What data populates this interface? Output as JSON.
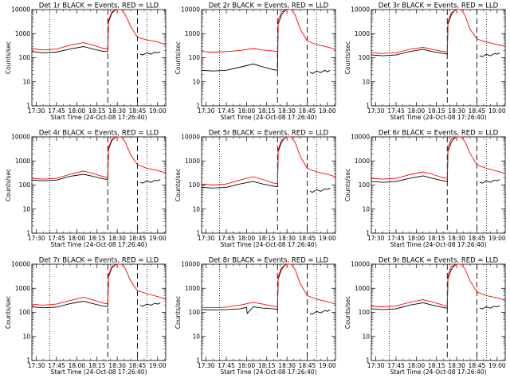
{
  "figure": {
    "xlabel": "Start Time (24-Oct-08 17:26:40)",
    "ylabel": "Counts/sec",
    "x_ticks": [
      "17:30",
      "17:45",
      "18:00",
      "18:15",
      "18:30",
      "18:45",
      "19:00"
    ],
    "y_ticks": [
      "1",
      "10",
      "100",
      "1000",
      "10000"
    ],
    "colors": {
      "events": "#000000",
      "lld": "#ff0000"
    }
  },
  "chart_data": [
    {
      "type": "line",
      "title": "Det 1r BLACK = Events, RED = LLD",
      "xlim": [
        "17:26:40",
        "19:06"
      ],
      "ylim": [
        1,
        10000
      ],
      "y_scale": "log",
      "vertical_dotted": [
        "17:40",
        "18:52"
      ],
      "vertical_dashed": [
        "18:23",
        "18:45"
      ],
      "series": [
        {
          "color": "#000000",
          "x": [
            "17:26:40",
            "17:35",
            "17:45",
            "17:55",
            "18:05",
            "18:12",
            "18:20",
            "18:23",
            "18:23:30",
            "18:26",
            "18:28",
            "18:30"
          ],
          "values": [
            180,
            160,
            170,
            230,
            290,
            230,
            180,
            180,
            3000,
            7000,
            9000,
            10000
          ]
        },
        {
          "color": "#000000",
          "x": [
            "18:47",
            "18:49",
            "18:52",
            "18:55",
            "18:58",
            "19:00",
            "19:02"
          ],
          "values": [
            140,
            130,
            160,
            140,
            170,
            160,
            180
          ]
        },
        {
          "color": "#ff0000",
          "x": [
            "17:26:40",
            "17:35",
            "17:45",
            "17:55",
            "18:05",
            "18:12",
            "18:20",
            "18:23",
            "18:23:30",
            "18:26",
            "18:30",
            "18:33",
            "18:36",
            "18:40",
            "18:45",
            "18:52",
            "19:00",
            "19:06"
          ],
          "values": [
            240,
            210,
            230,
            330,
            420,
            330,
            240,
            240,
            3500,
            8000,
            10000,
            10000,
            6000,
            2000,
            700,
            550,
            450,
            350
          ]
        }
      ]
    },
    {
      "type": "line",
      "title": "Det 2r BLACK = Events, RED = LLD",
      "xlim": [
        "17:26:40",
        "19:06"
      ],
      "ylim": [
        1,
        10000
      ],
      "y_scale": "log",
      "vertical_dotted": [
        "17:40",
        "18:52"
      ],
      "vertical_dashed": [
        "18:23",
        "18:45"
      ],
      "series": [
        {
          "color": "#000000",
          "x": [
            "17:26:40",
            "17:35",
            "17:45",
            "17:55",
            "18:05",
            "18:12",
            "18:20",
            "18:23",
            "18:23:30",
            "18:26",
            "18:28",
            "18:30"
          ],
          "values": [
            30,
            28,
            30,
            40,
            55,
            42,
            32,
            30,
            2500,
            6000,
            8500,
            10000
          ]
        },
        {
          "color": "#000000",
          "x": [
            "18:47",
            "18:49",
            "18:52",
            "18:55",
            "18:58",
            "19:00",
            "19:02"
          ],
          "values": [
            25,
            22,
            28,
            24,
            30,
            26,
            30
          ]
        },
        {
          "color": "#ff0000",
          "x": [
            "17:26:40",
            "17:35",
            "17:45",
            "17:55",
            "18:05",
            "18:12",
            "18:20",
            "18:23",
            "18:23:30",
            "18:26",
            "18:30",
            "18:33",
            "18:36",
            "18:40",
            "18:45",
            "18:52",
            "19:00",
            "19:06"
          ],
          "values": [
            180,
            170,
            180,
            200,
            240,
            210,
            190,
            180,
            3500,
            8000,
            10000,
            10000,
            6000,
            1500,
            500,
            350,
            280,
            220
          ]
        }
      ]
    },
    {
      "type": "line",
      "title": "Det 3r BLACK = Events, RED = LLD",
      "xlim": [
        "17:26:40",
        "19:06"
      ],
      "ylim": [
        1,
        10000
      ],
      "y_scale": "log",
      "vertical_dotted": [
        "17:40",
        "18:52"
      ],
      "vertical_dashed": [
        "18:23",
        "18:45"
      ],
      "series": [
        {
          "color": "#000000",
          "x": [
            "17:26:40",
            "17:35",
            "17:45",
            "17:55",
            "18:05",
            "18:12",
            "18:20",
            "18:23",
            "18:23:30",
            "18:26",
            "18:28",
            "18:30"
          ],
          "values": [
            130,
            120,
            130,
            180,
            220,
            180,
            150,
            140,
            2500,
            6000,
            8500,
            10000
          ]
        },
        {
          "color": "#000000",
          "x": [
            "18:47",
            "18:49",
            "18:52",
            "18:55",
            "18:58",
            "19:00",
            "19:02"
          ],
          "values": [
            120,
            110,
            140,
            120,
            150,
            140,
            160
          ]
        },
        {
          "color": "#ff0000",
          "x": [
            "17:26:40",
            "17:35",
            "17:45",
            "17:55",
            "18:05",
            "18:12",
            "18:20",
            "18:23",
            "18:23:30",
            "18:26",
            "18:30",
            "18:33",
            "18:36",
            "18:40",
            "18:45",
            "18:52",
            "19:00",
            "19:06"
          ],
          "values": [
            160,
            150,
            160,
            220,
            270,
            220,
            180,
            170,
            3000,
            7500,
            10000,
            10000,
            6000,
            1500,
            600,
            450,
            350,
            300
          ]
        }
      ]
    },
    {
      "type": "line",
      "title": "Det 4r BLACK = Events, RED = LLD",
      "xlim": [
        "17:26:40",
        "19:06"
      ],
      "ylim": [
        1,
        10000
      ],
      "y_scale": "log",
      "vertical_dotted": [
        "17:40",
        "18:52"
      ],
      "vertical_dashed": [
        "18:23",
        "18:45"
      ],
      "series": [
        {
          "color": "#000000",
          "x": [
            "17:26:40",
            "17:35",
            "17:45",
            "17:55",
            "18:05",
            "18:12",
            "18:20",
            "18:23",
            "18:23:30",
            "18:26",
            "18:28",
            "18:30"
          ],
          "values": [
            160,
            150,
            160,
            230,
            280,
            230,
            180,
            170,
            3000,
            7000,
            9000,
            10000
          ]
        },
        {
          "color": "#000000",
          "x": [
            "18:47",
            "18:49",
            "18:52",
            "18:55",
            "18:58",
            "19:00",
            "19:02"
          ],
          "values": [
            130,
            120,
            150,
            130,
            160,
            150,
            170
          ]
        },
        {
          "color": "#ff0000",
          "x": [
            "17:26:40",
            "17:35",
            "17:45",
            "17:55",
            "18:05",
            "18:12",
            "18:20",
            "18:23",
            "18:23:30",
            "18:26",
            "18:30",
            "18:33",
            "18:36",
            "18:40",
            "18:45",
            "18:52",
            "19:00",
            "19:06"
          ],
          "values": [
            190,
            175,
            190,
            280,
            380,
            300,
            220,
            210,
            3500,
            8000,
            10000,
            10000,
            6000,
            1800,
            700,
            500,
            400,
            320
          ]
        }
      ]
    },
    {
      "type": "line",
      "title": "Det 5r BLACK = Events, RED = LLD",
      "xlim": [
        "17:26:40",
        "19:06"
      ],
      "ylim": [
        1,
        10000
      ],
      "y_scale": "log",
      "vertical_dotted": [
        "17:40",
        "18:52"
      ],
      "vertical_dashed": [
        "18:23",
        "18:45"
      ],
      "series": [
        {
          "color": "#000000",
          "x": [
            "17:26:40",
            "17:35",
            "17:45",
            "17:55",
            "18:05",
            "18:12",
            "18:20",
            "18:23",
            "18:23:30",
            "18:26",
            "18:28",
            "18:30"
          ],
          "values": [
            80,
            75,
            80,
            110,
            140,
            110,
            90,
            85,
            2500,
            6000,
            8500,
            10000
          ]
        },
        {
          "color": "#000000",
          "x": [
            "18:47",
            "18:49",
            "18:52",
            "18:55",
            "18:58",
            "19:00",
            "19:02"
          ],
          "values": [
            55,
            50,
            65,
            55,
            70,
            65,
            75
          ]
        },
        {
          "color": "#ff0000",
          "x": [
            "17:26:40",
            "17:35",
            "17:45",
            "17:55",
            "18:05",
            "18:12",
            "18:20",
            "18:23",
            "18:23:30",
            "18:26",
            "18:30",
            "18:33",
            "18:36",
            "18:40",
            "18:45",
            "18:52",
            "19:00",
            "19:06"
          ],
          "values": [
            110,
            100,
            110,
            160,
            220,
            170,
            120,
            115,
            3000,
            7500,
            10000,
            10000,
            6000,
            1500,
            500,
            350,
            280,
            220
          ]
        }
      ]
    },
    {
      "type": "line",
      "title": "Det 6r BLACK = Events, RED = LLD",
      "xlim": [
        "17:26:40",
        "19:06"
      ],
      "ylim": [
        1,
        10000
      ],
      "y_scale": "log",
      "vertical_dotted": [
        "17:40",
        "18:52"
      ],
      "vertical_dashed": [
        "18:23",
        "18:45"
      ],
      "series": [
        {
          "color": "#000000",
          "x": [
            "17:26:40",
            "17:35",
            "17:45",
            "17:55",
            "18:05",
            "18:12",
            "18:20",
            "18:23",
            "18:23:30",
            "18:26",
            "18:28",
            "18:30"
          ],
          "values": [
            140,
            130,
            140,
            190,
            240,
            190,
            150,
            140,
            2500,
            6000,
            8500,
            10000
          ]
        },
        {
          "color": "#000000",
          "x": [
            "18:47",
            "18:49",
            "18:52",
            "18:55",
            "18:58",
            "19:00",
            "19:02"
          ],
          "values": [
            130,
            120,
            150,
            130,
            160,
            150,
            170
          ]
        },
        {
          "color": "#ff0000",
          "x": [
            "17:26:40",
            "17:35",
            "17:45",
            "17:55",
            "18:05",
            "18:12",
            "18:20",
            "18:23",
            "18:23:30",
            "18:26",
            "18:30",
            "18:33",
            "18:36",
            "18:40",
            "18:45",
            "18:52",
            "19:00",
            "19:06"
          ],
          "values": [
            190,
            175,
            190,
            270,
            350,
            280,
            200,
            190,
            3500,
            8000,
            10000,
            10000,
            6500,
            2000,
            700,
            500,
            380,
            300
          ]
        }
      ]
    },
    {
      "type": "line",
      "title": "Det 7r BLACK = Events, RED = LLD",
      "xlim": [
        "17:26:40",
        "19:06"
      ],
      "ylim": [
        1,
        10000
      ],
      "y_scale": "log",
      "vertical_dotted": [
        "17:40",
        "18:52"
      ],
      "vertical_dashed": [
        "18:23",
        "18:45"
      ],
      "series": [
        {
          "color": "#000000",
          "x": [
            "17:26:40",
            "17:35",
            "17:45",
            "17:55",
            "18:05",
            "18:12",
            "18:20",
            "18:23",
            "18:23:30",
            "18:26",
            "18:28",
            "18:30"
          ],
          "values": [
            170,
            155,
            165,
            230,
            290,
            230,
            180,
            175,
            3000,
            7000,
            9000,
            10000
          ]
        },
        {
          "color": "#000000",
          "x": [
            "18:47",
            "18:49",
            "18:52",
            "18:55",
            "18:58",
            "19:00",
            "19:02"
          ],
          "values": [
            200,
            180,
            220,
            200,
            240,
            220,
            250
          ]
        },
        {
          "color": "#ff0000",
          "x": [
            "17:26:40",
            "17:35",
            "17:45",
            "17:55",
            "18:05",
            "18:12",
            "18:20",
            "18:23",
            "18:23:30",
            "18:26",
            "18:30",
            "18:33",
            "18:36",
            "18:40",
            "18:45",
            "18:52",
            "19:00",
            "19:06"
          ],
          "values": [
            220,
            200,
            220,
            310,
            420,
            330,
            240,
            230,
            3500,
            8000,
            10000,
            10000,
            6500,
            2000,
            800,
            600,
            450,
            350
          ]
        }
      ]
    },
    {
      "type": "line",
      "title": "Det 8r BLACK = Events, RED = LLD",
      "xlim": [
        "17:26:40",
        "19:06"
      ],
      "ylim": [
        1,
        10000
      ],
      "y_scale": "log",
      "vertical_dotted": [
        "17:40",
        "18:52"
      ],
      "vertical_dashed": [
        "18:23",
        "18:45"
      ],
      "series": [
        {
          "color": "#000000",
          "x": [
            "17:26:40",
            "17:35",
            "17:45",
            "17:55",
            "18:00",
            "18:00:30",
            "18:05",
            "18:12",
            "18:20",
            "18:23",
            "18:23:30",
            "18:26",
            "18:28",
            "18:30"
          ],
          "values": [
            130,
            125,
            130,
            140,
            160,
            90,
            170,
            150,
            140,
            135,
            2500,
            6000,
            8500,
            10000
          ]
        },
        {
          "color": "#000000",
          "x": [
            "18:47",
            "18:49",
            "18:52",
            "18:55",
            "18:58",
            "19:00",
            "19:02"
          ],
          "values": [
            90,
            85,
            110,
            95,
            120,
            110,
            130
          ]
        },
        {
          "color": "#ff0000",
          "x": [
            "17:26:40",
            "17:35",
            "17:45",
            "17:55",
            "18:05",
            "18:12",
            "18:20",
            "18:23",
            "18:23:30",
            "18:26",
            "18:30",
            "18:33",
            "18:36",
            "18:40",
            "18:45",
            "18:52",
            "19:00",
            "19:06"
          ],
          "values": [
            160,
            155,
            165,
            200,
            260,
            220,
            180,
            170,
            3000,
            7500,
            10000,
            10000,
            6000,
            1500,
            500,
            350,
            280,
            220
          ]
        }
      ]
    },
    {
      "type": "line",
      "title": "Det 9r BLACK = Events, RED = LLD",
      "xlim": [
        "17:26:40",
        "19:06"
      ],
      "ylim": [
        1,
        10000
      ],
      "y_scale": "log",
      "vertical_dotted": [
        "17:40",
        "18:52"
      ],
      "vertical_dashed": [
        "18:23",
        "18:45"
      ],
      "series": [
        {
          "color": "#000000",
          "x": [
            "17:26:40",
            "17:35",
            "17:45",
            "17:55",
            "18:05",
            "18:12",
            "18:20",
            "18:23",
            "18:23:30",
            "18:26",
            "18:28",
            "18:30"
          ],
          "values": [
            140,
            130,
            140,
            200,
            250,
            200,
            160,
            150,
            2500,
            6000,
            8500,
            10000
          ]
        },
        {
          "color": "#000000",
          "x": [
            "18:47",
            "18:49",
            "18:52",
            "18:55",
            "18:58",
            "19:00",
            "19:02"
          ],
          "values": [
            150,
            140,
            170,
            150,
            180,
            170,
            190
          ]
        },
        {
          "color": "#ff0000",
          "x": [
            "17:26:40",
            "17:35",
            "17:45",
            "17:55",
            "18:05",
            "18:12",
            "18:20",
            "18:23",
            "18:23:30",
            "18:26",
            "18:30",
            "18:33",
            "18:36",
            "18:40",
            "18:45",
            "18:52",
            "19:00",
            "19:06"
          ],
          "values": [
            180,
            170,
            185,
            260,
            340,
            270,
            200,
            190,
            3500,
            8000,
            10000,
            10000,
            6500,
            2000,
            700,
            500,
            400,
            320
          ]
        }
      ]
    }
  ]
}
